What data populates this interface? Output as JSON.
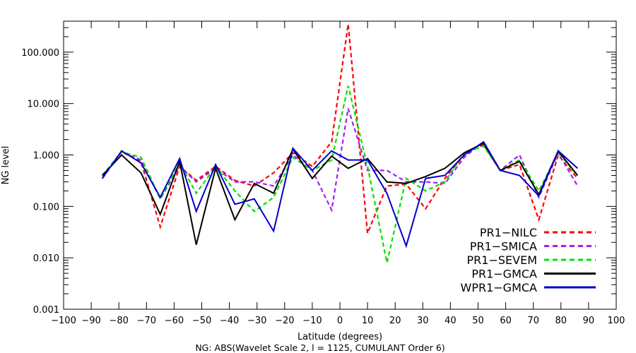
{
  "chart_data": {
    "type": "line",
    "title": "",
    "xlabel": "Latitude (degrees)",
    "ylabel": "NG level",
    "caption": "NG: ABS(Wavelet  Scale 2, l =  1125, CUMULANT Order 6)",
    "yscale": "log",
    "xlim": [
      -100,
      100
    ],
    "ylim": [
      0.001,
      400
    ],
    "x_ticks": [
      -100,
      -90,
      -80,
      -70,
      -60,
      -50,
      -40,
      -30,
      -20,
      -10,
      0,
      10,
      20,
      30,
      40,
      50,
      60,
      70,
      80,
      90,
      100
    ],
    "y_ticks": [
      0.001,
      0.01,
      0.1,
      1,
      10,
      100
    ],
    "y_tick_labels": [
      "0.001",
      "0.010",
      "0.100",
      "1.000",
      "10.000",
      "100.000"
    ],
    "legend_position": "bottom-right",
    "x": [
      -86,
      -79,
      -72,
      -65,
      -58,
      -52,
      -45,
      -38,
      -31,
      -24,
      -17,
      -10,
      -3,
      3,
      10,
      17,
      24,
      31,
      38,
      45,
      52,
      58,
      65,
      72,
      79,
      86
    ],
    "series": [
      {
        "name": "PR1−NILC",
        "color": "#ff0000",
        "dash": true,
        "values": [
          0.35,
          1.15,
          0.75,
          0.04,
          0.6,
          0.32,
          0.6,
          0.32,
          0.25,
          0.45,
          1.1,
          0.6,
          1.8,
          350,
          0.03,
          0.25,
          0.27,
          0.09,
          0.35,
          1.0,
          1.6,
          0.5,
          0.65,
          0.055,
          1.0,
          0.35
        ]
      },
      {
        "name": "PR1−SMICA",
        "color": "#a020f0",
        "dash": true,
        "values": [
          0.35,
          1.15,
          0.8,
          0.14,
          0.6,
          0.3,
          0.55,
          0.3,
          0.3,
          0.25,
          1.0,
          0.5,
          0.085,
          8.0,
          0.5,
          0.5,
          0.3,
          0.3,
          0.28,
          0.9,
          1.8,
          0.5,
          1.0,
          0.15,
          1.1,
          0.25
        ]
      },
      {
        "name": "PR1−SEVEM",
        "color": "#00e000",
        "dash": true,
        "values": [
          0.4,
          1.15,
          0.9,
          0.14,
          0.7,
          0.18,
          0.6,
          0.2,
          0.08,
          0.15,
          0.9,
          0.5,
          0.8,
          22,
          0.6,
          0.008,
          0.35,
          0.2,
          0.3,
          1.1,
          1.5,
          0.5,
          0.8,
          0.2,
          1.1,
          0.4
        ]
      },
      {
        "name": "PR1−GMCA",
        "color": "#000000",
        "dash": false,
        "values": [
          0.4,
          1.0,
          0.45,
          0.07,
          0.75,
          0.018,
          0.55,
          0.055,
          0.28,
          0.18,
          1.3,
          0.35,
          0.95,
          0.55,
          0.85,
          0.3,
          0.28,
          0.38,
          0.55,
          1.1,
          1.7,
          0.5,
          0.75,
          0.17,
          1.2,
          0.4
        ]
      },
      {
        "name": "WPR1−GMCA",
        "color": "#0000cc",
        "dash": false,
        "values": [
          0.35,
          1.2,
          0.7,
          0.15,
          0.85,
          0.08,
          0.65,
          0.11,
          0.14,
          0.033,
          1.35,
          0.5,
          1.2,
          0.8,
          0.8,
          0.18,
          0.017,
          0.35,
          0.4,
          1.0,
          1.8,
          0.5,
          0.4,
          0.16,
          1.2,
          0.55
        ]
      }
    ]
  }
}
